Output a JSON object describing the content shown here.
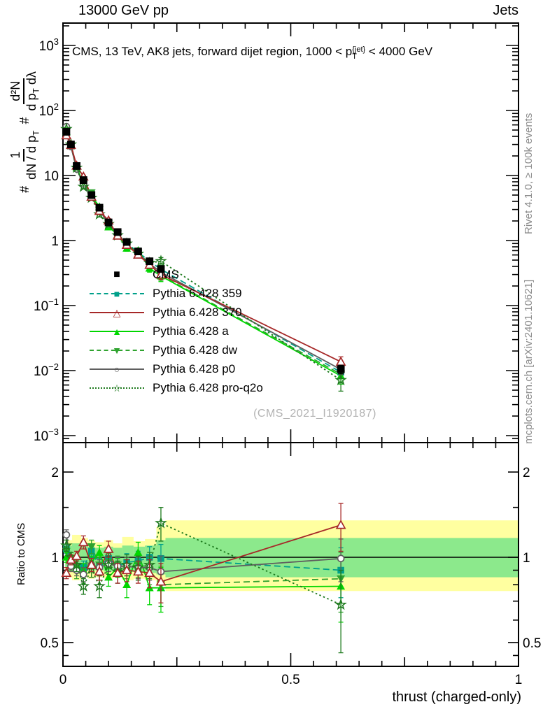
{
  "header": {
    "left": "13000 GeV pp",
    "right": "Jets"
  },
  "title": {
    "prefix": "CMS, 13 TeV, AK8 jets, forward dijet region, 1000 < p",
    "sup": "{jet}",
    "sub": "T",
    "suffix": "< 4000 GeV"
  },
  "ylabel": {
    "hash1": "#",
    "frac1_num": "1",
    "frac1_den_pre": "dN / d p",
    "frac1_den_sub": "T",
    "hash2": "#",
    "frac2_num": "d²N",
    "frac2_den_pre": "d p",
    "frac2_den_sub": "T",
    "frac2_den_post": " dλ"
  },
  "ratio_label": "Ratio to CMS",
  "xlabel": "thrust (charged-only)",
  "watermark": "(CMS_2021_I1920187)",
  "side_text": {
    "top": "Rivet 4.1.0, ≥ 100k events",
    "bottom": "mcplots.cern.ch [arXiv:2401.10621]"
  },
  "legend": {
    "items": [
      {
        "name": "CMS",
        "label": "CMS",
        "color": "#000000",
        "line": "none",
        "marker": "square-filled"
      },
      {
        "name": "pythia-359",
        "label": "Pythia 6.428 359",
        "color": "#00A08A",
        "line": "dashed",
        "marker": "square-filled"
      },
      {
        "name": "pythia-370",
        "label": "Pythia 6.428 370",
        "color": "#A62828",
        "line": "solid",
        "marker": "triangle-open"
      },
      {
        "name": "pythia-a",
        "label": "Pythia 6.428 a",
        "color": "#00D600",
        "line": "solid",
        "marker": "triangle-filled"
      },
      {
        "name": "pythia-dw",
        "label": "Pythia 6.428 dw",
        "color": "#2FA32F",
        "line": "dashed",
        "marker": "triangle-down-filled"
      },
      {
        "name": "pythia-p0",
        "label": "Pythia 6.428 p0",
        "color": "#5F5F5F",
        "line": "solid",
        "marker": "circle-open"
      },
      {
        "name": "pythia-pro-q2o",
        "label": "Pythia 6.428 pro-q2o",
        "color": "#1E7A1E",
        "line": "dotted",
        "marker": "star-open"
      }
    ]
  },
  "chart_data": {
    "type": "line",
    "title": "CMS, 13 TeV, AK8 jets, forward dijet region, 1000 < pT{jet} < 4000 GeV",
    "xlabel": "thrust (charged-only)",
    "ylabel": "1/(dN/dpT) d2N/(dpT dlambda)",
    "xlim": [
      0,
      1
    ],
    "main_ylog": true,
    "main_ylim": [
      0.001,
      1000
    ],
    "ratio_ylog": true,
    "ratio_ylim": [
      0.41,
      2.54
    ],
    "legend_position": "mid-left",
    "grid": false,
    "x": [
      0.0075,
      0.0175,
      0.03,
      0.045,
      0.0625,
      0.08,
      0.1,
      0.12,
      0.14,
      0.165,
      0.19,
      0.215,
      0.61
    ],
    "cms": {
      "values": [
        47,
        30,
        14,
        8.5,
        5.0,
        3.2,
        1.9,
        1.35,
        0.95,
        0.68,
        0.48,
        0.365,
        0.0105
      ],
      "rel_err": [
        0.04,
        0.04,
        0.04,
        0.04,
        0.05,
        0.05,
        0.05,
        0.05,
        0.06,
        0.06,
        0.07,
        0.08,
        0.15
      ]
    },
    "series": [
      {
        "name": "Pythia 6.428 359",
        "color": "#00A08A",
        "line": "dashed",
        "marker": "square-filled",
        "ratios": [
          1.07,
          0.97,
          0.93,
          0.92,
          1.05,
          0.93,
          0.99,
          0.93,
          0.96,
          0.97,
          1.0,
          0.99,
          0.9
        ],
        "ratio_err": [
          0.04,
          0.04,
          0.04,
          0.05,
          0.05,
          0.06,
          0.06,
          0.07,
          0.07,
          0.08,
          0.09,
          0.12,
          0.18
        ]
      },
      {
        "name": "Pythia 6.428 370",
        "color": "#A62828",
        "line": "solid",
        "marker": "triangle-open",
        "ratios": [
          0.88,
          0.98,
          1.01,
          1.13,
          0.94,
          0.89,
          1.07,
          0.88,
          0.9,
          0.89,
          0.88,
          0.82,
          1.3
        ],
        "ratio_err": [
          0.04,
          0.04,
          0.04,
          0.06,
          0.05,
          0.06,
          0.07,
          0.07,
          0.08,
          0.08,
          0.1,
          0.13,
          0.25
        ]
      },
      {
        "name": "Pythia 6.428 a",
        "color": "#00D600",
        "line": "solid",
        "marker": "triangle-filled",
        "ratios": [
          1.0,
          1.0,
          0.94,
          0.9,
          0.96,
          1.04,
          0.85,
          0.92,
          0.8,
          1.04,
          0.78,
          0.78,
          0.79
        ],
        "ratio_err": [
          0.04,
          0.04,
          0.04,
          0.05,
          0.05,
          0.06,
          0.06,
          0.07,
          0.08,
          0.09,
          0.1,
          0.14,
          0.2
        ]
      },
      {
        "name": "Pythia 6.428 dw",
        "color": "#2FA32F",
        "line": "dashed",
        "marker": "triangle-down-filled",
        "ratios": [
          1.05,
          0.94,
          0.89,
          0.86,
          1.09,
          0.94,
          0.96,
          0.94,
          0.92,
          0.94,
          0.9,
          0.8,
          0.84
        ],
        "ratio_err": [
          0.04,
          0.04,
          0.05,
          0.05,
          0.06,
          0.06,
          0.07,
          0.07,
          0.08,
          0.09,
          0.1,
          0.13,
          0.2
        ]
      },
      {
        "name": "Pythia 6.428 p0",
        "color": "#5F5F5F",
        "line": "solid",
        "marker": "circle-open",
        "ratios": [
          1.2,
          0.93,
          0.9,
          0.87,
          0.94,
          0.92,
          0.95,
          0.93,
          0.93,
          0.92,
          0.92,
          0.89,
          0.99
        ],
        "ratio_err": [
          0.05,
          0.04,
          0.04,
          0.05,
          0.05,
          0.06,
          0.06,
          0.07,
          0.07,
          0.08,
          0.09,
          0.12,
          0.17
        ]
      },
      {
        "name": "Pythia 6.428 pro-q2o",
        "color": "#1E7A1E",
        "line": "dotted",
        "marker": "star-open",
        "ratios": [
          1.1,
          1.0,
          0.94,
          0.79,
          0.91,
          0.79,
          0.94,
          0.89,
          0.94,
          0.92,
          0.94,
          1.32,
          0.68
        ],
        "ratio_err": [
          0.05,
          0.04,
          0.05,
          0.05,
          0.06,
          0.07,
          0.07,
          0.08,
          0.08,
          0.09,
          0.1,
          0.18,
          0.22
        ]
      }
    ],
    "band_colors": {
      "outer": "#FFFFA0",
      "inner": "#8CE98C"
    },
    "ratio_bands": [
      {
        "x0": 0.005,
        "x1": 0.01,
        "ylo": 0.88,
        "glo": 0.92,
        "ghi": 1.08,
        "yhi": 1.12
      },
      {
        "x0": 0.01,
        "x1": 0.02,
        "ylo": 0.85,
        "glo": 0.9,
        "ghi": 1.1,
        "yhi": 1.15
      },
      {
        "x0": 0.02,
        "x1": 0.04,
        "ylo": 0.83,
        "glo": 0.89,
        "ghi": 1.12,
        "yhi": 1.2
      },
      {
        "x0": 0.04,
        "x1": 0.055,
        "ylo": 0.85,
        "glo": 0.9,
        "ghi": 1.1,
        "yhi": 1.17
      },
      {
        "x0": 0.055,
        "x1": 0.07,
        "ylo": 0.84,
        "glo": 0.9,
        "ghi": 1.09,
        "yhi": 1.15
      },
      {
        "x0": 0.07,
        "x1": 0.09,
        "ylo": 0.85,
        "glo": 0.9,
        "ghi": 1.08,
        "yhi": 1.13
      },
      {
        "x0": 0.09,
        "x1": 0.11,
        "ylo": 0.84,
        "glo": 0.89,
        "ghi": 1.09,
        "yhi": 1.15
      },
      {
        "x0": 0.11,
        "x1": 0.13,
        "ylo": 0.85,
        "glo": 0.9,
        "ghi": 1.08,
        "yhi": 1.12
      },
      {
        "x0": 0.13,
        "x1": 0.155,
        "ylo": 0.83,
        "glo": 0.89,
        "ghi": 1.1,
        "yhi": 1.18
      },
      {
        "x0": 0.155,
        "x1": 0.18,
        "ylo": 0.84,
        "glo": 0.89,
        "ghi": 1.09,
        "yhi": 1.14
      },
      {
        "x0": 0.18,
        "x1": 0.205,
        "ylo": 0.83,
        "glo": 0.88,
        "ghi": 1.1,
        "yhi": 1.16
      },
      {
        "x0": 0.205,
        "x1": 0.225,
        "ylo": 0.8,
        "glo": 0.87,
        "ghi": 1.15,
        "yhi": 1.28
      },
      {
        "x0": 0.225,
        "x1": 1.0,
        "ylo": 0.76,
        "glo": 0.85,
        "ghi": 1.17,
        "yhi": 1.35
      }
    ],
    "axes": {
      "main_y_ticks": [
        {
          "v": 1000,
          "base": "10",
          "exp": "3"
        },
        {
          "v": 100,
          "base": "10",
          "exp": "2"
        },
        {
          "v": 10,
          "base": "10",
          "exp": ""
        },
        {
          "v": 1,
          "base": "1",
          "exp": ""
        },
        {
          "v": 0.1,
          "base": "10",
          "exp": "−1"
        },
        {
          "v": 0.01,
          "base": "10",
          "exp": "−2"
        },
        {
          "v": 0.001,
          "base": "10",
          "exp": "−3"
        }
      ],
      "ratio_y_ticks": [
        {
          "v": 2,
          "label": "2"
        },
        {
          "v": 1,
          "label": "1"
        },
        {
          "v": 0.5,
          "label": "0.5"
        }
      ],
      "x_ticks": [
        {
          "v": 0,
          "label": "0"
        },
        {
          "v": 0.5,
          "label": "0.5"
        },
        {
          "v": 1,
          "label": "1"
        }
      ]
    }
  }
}
